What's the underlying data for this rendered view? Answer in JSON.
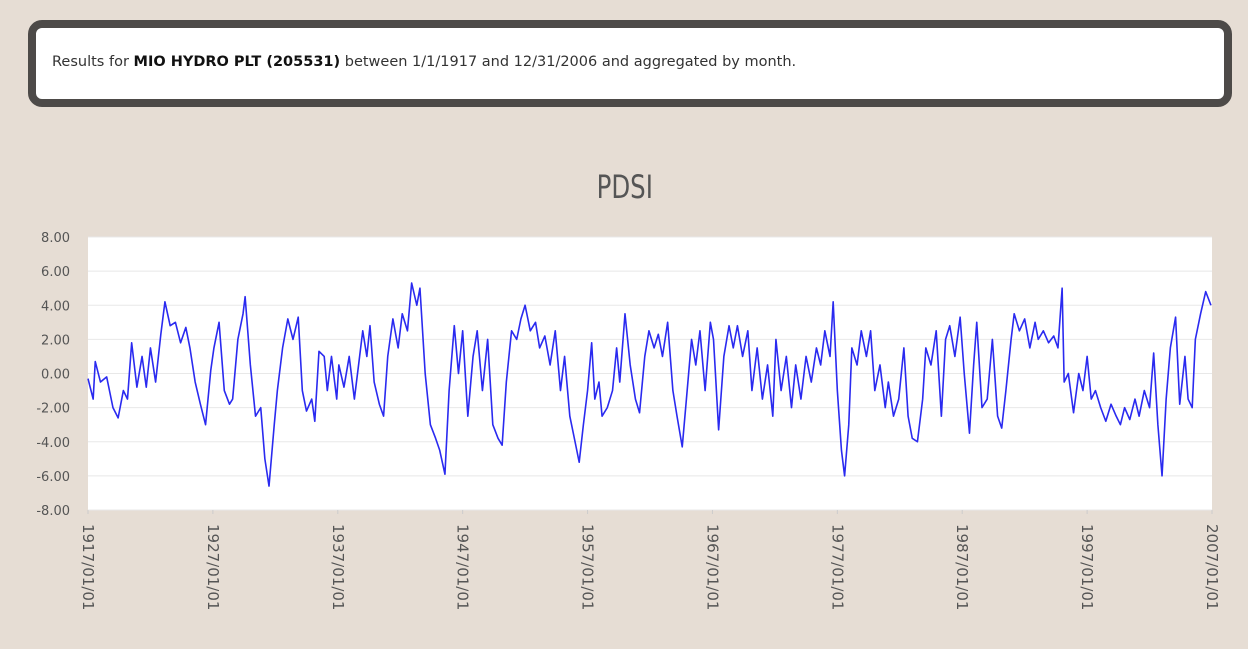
{
  "header": {
    "prefix": "Results for ",
    "station": "MIO HYDRO PLT (205531)",
    "suffix": " between 1/1/1917 and 12/31/2006 and aggregated by month."
  },
  "chart_data": {
    "type": "line",
    "title": "PDSI",
    "color": "#2a2af0",
    "grid": true,
    "xlim": [
      "1917/01/01",
      "2007/01/01"
    ],
    "xticks": [
      "1917/01/01",
      "1927/01/01",
      "1937/01/01",
      "1947/01/01",
      "1957/01/01",
      "1967/01/01",
      "1977/01/01",
      "1987/01/01",
      "1997/01/01",
      "2007/01/01"
    ],
    "ylim": [
      -8,
      8
    ],
    "yticks": [
      {
        "value": -8,
        "label": "-8.00"
      },
      {
        "value": -6,
        "label": "-6.00"
      },
      {
        "value": -4,
        "label": "-4.00"
      },
      {
        "value": -2,
        "label": "-2.00"
      },
      {
        "value": 0,
        "label": "0.00"
      },
      {
        "value": 2,
        "label": "2.00"
      },
      {
        "value": 4,
        "label": "4.00"
      },
      {
        "value": 6,
        "label": "6.00"
      },
      {
        "value": 8,
        "label": "8.00"
      }
    ],
    "x": [
      "1917/01/01",
      "1917/06/01",
      "1917/08/01",
      "1918/01/01",
      "1918/07/01",
      "1919/01/01",
      "1919/06/01",
      "1919/11/01",
      "1920/03/01",
      "1920/07/01",
      "1920/12/01",
      "1921/05/01",
      "1921/09/01",
      "1922/01/01",
      "1922/06/01",
      "1922/11/01",
      "1923/03/01",
      "1923/08/01",
      "1924/01/01",
      "1924/06/01",
      "1924/11/01",
      "1925/03/01",
      "1925/08/01",
      "1926/01/01",
      "1926/06/01",
      "1926/11/01",
      "1927/02/01",
      "1927/07/01",
      "1927/12/01",
      "1928/05/01",
      "1928/08/01",
      "1929/01/01",
      "1929/06/01",
      "1929/08/01",
      "1930/01/01",
      "1930/06/01",
      "1930/11/01",
      "1931/03/01",
      "1931/07/01",
      "1931/12/01",
      "1932/03/01",
      "1932/08/01",
      "1933/01/01",
      "1933/06/01",
      "1933/11/01",
      "1934/03/01",
      "1934/07/01",
      "1934/12/01",
      "1935/03/01",
      "1935/07/01",
      "1935/12/01",
      "1936/03/01",
      "1936/07/01",
      "1936/12/01",
      "1937/02/01",
      "1937/07/01",
      "1937/12/01",
      "1938/05/01",
      "1938/09/01",
      "1939/01/01",
      "1939/05/01",
      "1939/08/01",
      "1939/12/01",
      "1940/05/01",
      "1940/09/01",
      "1941/01/01",
      "1941/06/01",
      "1941/11/01",
      "1942/03/01",
      "1942/08/01",
      "1942/12/01",
      "1943/05/01",
      "1943/08/01",
      "1944/01/01",
      "1944/06/01",
      "1944/11/01",
      "1945/03/01",
      "1945/08/01",
      "1945/12/01",
      "1946/05/01",
      "1946/09/01",
      "1947/01/01",
      "1947/06/01",
      "1947/11/01",
      "1948/03/01",
      "1948/08/01",
      "1949/01/01",
      "1949/06/01",
      "1949/11/01",
      "1950/03/01",
      "1950/07/01",
      "1950/12/01",
      "1951/05/01",
      "1951/09/01",
      "1952/01/01",
      "1952/06/01",
      "1952/11/01",
      "1953/03/01",
      "1953/08/01",
      "1954/01/01",
      "1954/06/01",
      "1954/11/01",
      "1955/03/01",
      "1955/08/01",
      "1956/01/01",
      "1956/05/01",
      "1956/09/01",
      "1957/01/01",
      "1957/05/01",
      "1957/08/01",
      "1957/12/01",
      "1958/03/01",
      "1958/08/01",
      "1959/01/01",
      "1959/05/01",
      "1959/08/01",
      "1960/01/01",
      "1960/06/01",
      "1960/11/01",
      "1961/03/01",
      "1961/08/01",
      "1961/12/01",
      "1962/05/01",
      "1962/09/01",
      "1963/01/01",
      "1963/06/01",
      "1963/11/01",
      "1964/03/01",
      "1964/08/01",
      "1964/12/01",
      "1965/05/01",
      "1965/09/01",
      "1966/01/01",
      "1966/06/01",
      "1966/11/01",
      "1967/02/01",
      "1967/07/01",
      "1967/12/01",
      "1968/05/01",
      "1968/09/01",
      "1969/01/01",
      "1969/06/01",
      "1969/11/01",
      "1970/03/01",
      "1970/08/01",
      "1971/01/01",
      "1971/06/01",
      "1971/11/01",
      "1972/02/01",
      "1972/07/01",
      "1972/12/01",
      "1973/05/01",
      "1973/09/01",
      "1974/02/01",
      "1974/07/01",
      "1974/12/01",
      "1975/05/01",
      "1975/09/01",
      "1976/01/01",
      "1976/06/01",
      "1976/09/01",
      "1977/01/01",
      "1977/05/01",
      "1977/08/01",
      "1977/12/01",
      "1978/03/01",
      "1978/08/01",
      "1978/12/01",
      "1979/05/01",
      "1979/09/01",
      "1980/01/01",
      "1980/06/01",
      "1980/11/01",
      "1981/02/01",
      "1981/07/01",
      "1981/12/01",
      "1982/05/01",
      "1982/09/01",
      "1983/01/01",
      "1983/06/01",
      "1983/11/01",
      "1984/02/01",
      "1984/07/01",
      "1984/12/01",
      "1985/05/01",
      "1985/09/01",
      "1986/01/01",
      "1986/06/01",
      "1986/11/01",
      "1987/03/01",
      "1987/08/01",
      "1987/12/01",
      "1988/03/01",
      "1988/08/01",
      "1989/01/01",
      "1989/06/01",
      "1989/11/01",
      "1990/03/01",
      "1990/07/01",
      "1990/12/01",
      "1991/03/01",
      "1991/08/01",
      "1992/01/01",
      "1992/06/01",
      "1992/11/01",
      "1993/02/01",
      "1993/07/01",
      "1993/12/01",
      "1994/05/01",
      "1994/09/01",
      "1995/01/01",
      "1995/03/01",
      "1995/07/01",
      "1995/12/01",
      "1996/05/01",
      "1996/09/01",
      "1997/01/01",
      "1997/05/01",
      "1997/09/01",
      "1998/02/01",
      "1998/07/01",
      "1998/12/01",
      "1999/05/01",
      "1999/09/01",
      "2000/01/01",
      "2000/06/01",
      "2000/11/01",
      "2001/03/01",
      "2001/08/01",
      "2002/01/01",
      "2002/05/01",
      "2002/09/01",
      "2003/01/01",
      "2003/05/01",
      "2003/09/01",
      "2004/02/01",
      "2004/06/01",
      "2004/11/01",
      "2005/02/01",
      "2005/06/01",
      "2005/09/01",
      "2006/02/01",
      "2006/07/01",
      "2006/12/01"
    ],
    "values": [
      -0.3,
      -1.5,
      0.7,
      -0.5,
      -0.2,
      -2.0,
      -2.6,
      -1.0,
      -1.5,
      1.8,
      -0.8,
      1.0,
      -0.8,
      1.5,
      -0.5,
      2.3,
      4.2,
      2.8,
      3.0,
      1.8,
      2.7,
      1.5,
      -0.5,
      -1.8,
      -3.0,
      0.2,
      1.5,
      3.0,
      -1.0,
      -1.8,
      -1.5,
      2.0,
      3.5,
      4.5,
      0.5,
      -2.5,
      -2.0,
      -5.0,
      -6.6,
      -3.0,
      -1.0,
      1.5,
      3.2,
      2.0,
      3.3,
      -1.0,
      -2.2,
      -1.5,
      -2.8,
      1.3,
      1.0,
      -1.0,
      1.0,
      -1.5,
      0.5,
      -0.8,
      1.0,
      -1.5,
      0.5,
      2.5,
      1.0,
      2.8,
      -0.5,
      -1.8,
      -2.5,
      1.0,
      3.2,
      1.5,
      3.5,
      2.5,
      5.3,
      4.0,
      5.0,
      0.0,
      -3.0,
      -3.8,
      -4.5,
      -5.9,
      -1.0,
      2.8,
      0.0,
      2.5,
      -2.5,
      1.0,
      2.5,
      -1.0,
      2.0,
      -3.0,
      -3.8,
      -4.2,
      -0.5,
      2.5,
      2.0,
      3.2,
      4.0,
      2.5,
      3.0,
      1.5,
      2.2,
      0.5,
      2.5,
      -1.0,
      1.0,
      -2.5,
      -4.0,
      -5.2,
      -3.0,
      -1.0,
      1.8,
      -1.5,
      -0.5,
      -2.5,
      -2.0,
      -1.0,
      1.5,
      -0.5,
      3.5,
      0.5,
      -1.5,
      -2.3,
      1.0,
      2.5,
      1.5,
      2.3,
      1.0,
      3.0,
      -1.0,
      -2.5,
      -4.3,
      -1.5,
      2.0,
      0.5,
      2.5,
      -1.0,
      3.0,
      2.0,
      -3.3,
      1.0,
      2.8,
      1.5,
      2.8,
      1.0,
      2.5,
      -1.0,
      1.5,
      -1.5,
      0.5,
      -2.5,
      2.0,
      -1.0,
      1.0,
      -2.0,
      0.5,
      -1.5,
      1.0,
      -0.5,
      1.5,
      0.5,
      2.5,
      1.0,
      4.2,
      -1.0,
      -4.5,
      -6.0,
      -3.0,
      1.5,
      0.5,
      2.5,
      1.0,
      2.5,
      -1.0,
      0.5,
      -2.0,
      -0.5,
      -2.5,
      -1.5,
      1.5,
      -2.5,
      -3.8,
      -4.0,
      -1.5,
      1.5,
      0.5,
      2.5,
      -2.5,
      2.0,
      2.8,
      1.0,
      3.3,
      0.0,
      -3.5,
      0.5,
      3.0,
      -2.0,
      -1.5,
      2.0,
      -2.5,
      -3.2,
      -1.0,
      2.0,
      3.5,
      2.5,
      3.2,
      1.5,
      3.0,
      2.0,
      2.5,
      1.8,
      2.2,
      1.5,
      5.0,
      -0.5,
      0.0,
      -2.3,
      0.0,
      -1.0,
      1.0,
      -1.5,
      -1.0,
      -2.0,
      -2.8,
      -1.8,
      -2.5,
      -3.0,
      -2.0,
      -2.7,
      -1.5,
      -2.5,
      -1.0,
      -2.0,
      1.2,
      -3.0,
      -6.0,
      -1.5,
      1.5,
      3.3,
      -1.8,
      1.0,
      -1.5,
      -2.0,
      2.0,
      3.5,
      4.8,
      4.0
    ]
  }
}
